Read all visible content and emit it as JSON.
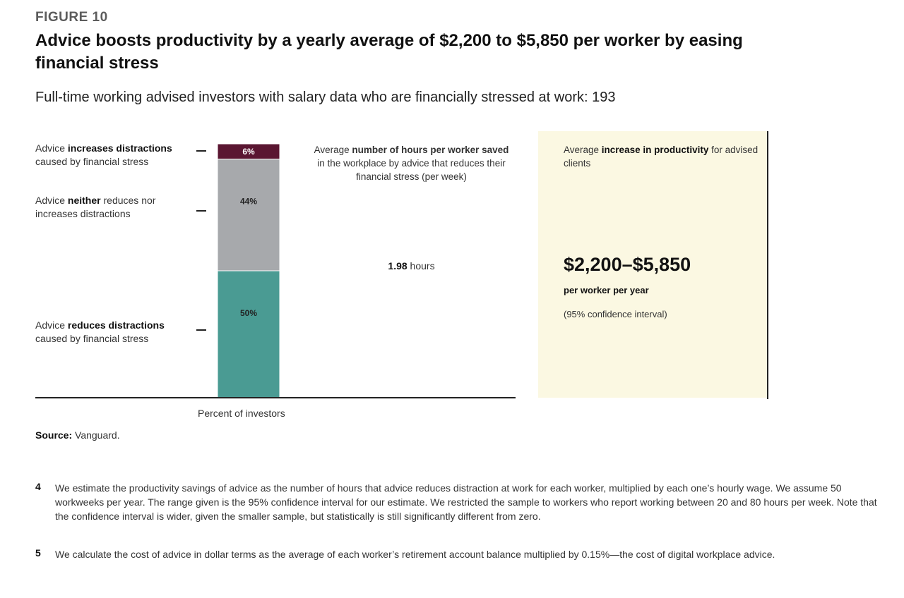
{
  "header": {
    "figure_label": "FIGURE 10",
    "title": "Advice boosts productivity by a yearly average of $2,200 to $5,850 per worker by easing financial stress",
    "subtitle": "Full-time working advised investors with salary data who are financially stressed at work: 193"
  },
  "labels": {
    "increases": {
      "pre": "Advice ",
      "bold": "increases distractions",
      "post": " caused by financial stress"
    },
    "neither": {
      "pre": "Advice ",
      "bold": "neither",
      "post": " reduces nor increases distractions"
    },
    "reduces": {
      "pre": "Advice ",
      "bold": "reduces distractions",
      "post": " caused by financial stress"
    }
  },
  "chart_data": {
    "type": "bar",
    "stacked": true,
    "xlabel": "Percent of investors",
    "categories": [
      ""
    ],
    "series": [
      {
        "name": "Advice reduces distractions caused by financial stress",
        "values": [
          50
        ],
        "label": "50%",
        "color": "#4a9b93",
        "label_color": "#222222"
      },
      {
        "name": "Advice neither reduces nor increases distractions",
        "values": [
          44
        ],
        "label": "44%",
        "color": "#a7a9ac",
        "label_color": "#222222"
      },
      {
        "name": "Advice increases distractions caused by financial stress",
        "values": [
          6
        ],
        "label": "6%",
        "color": "#5a1631",
        "label_color": "#ffffff"
      }
    ]
  },
  "hours": {
    "head_pre": "Average ",
    "head_bold1": "number of hours per worker saved",
    "head_post": " in the workplace by advice that reduces their financial stress (per week)",
    "value": "1.98",
    "unit": " hours"
  },
  "productivity": {
    "head_pre": "Average ",
    "head_bold": "increase in productivity",
    "head_post": " for advised clients",
    "value": "$2,200–$5,850",
    "unit": "per worker per year",
    "ci": "(95% confidence interval)",
    "panel_color": "#fbf8e2"
  },
  "source": {
    "label": "Source:",
    "text": " Vanguard."
  },
  "footnotes": [
    {
      "num": "4",
      "text": "We estimate the productivity savings of advice as the number of hours that advice reduces distraction at work for each worker, multiplied by each one’s hourly wage. We assume 50 workweeks per year. The range given is the 95% confidence interval for our estimate. We restricted the sample to workers who report working between 20 and 80 hours per week. Note that the confidence interval is wider, given the smaller sample, but statistically is still significantly different from zero."
    },
    {
      "num": "5",
      "text": "We calculate the cost of advice in dollar terms as the average of each worker’s retirement account balance multiplied by 0.15%—the cost of digital workplace advice."
    }
  ]
}
